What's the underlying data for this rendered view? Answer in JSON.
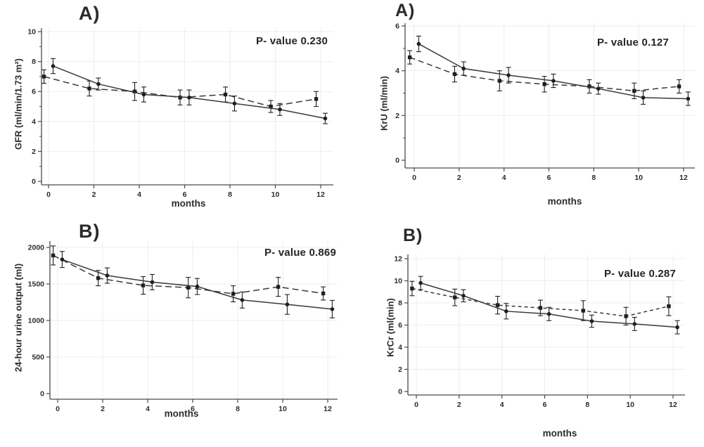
{
  "figure": {
    "background": "#ffffff",
    "text_color": "#2c2c2c",
    "axis_color": "#4a4a4a",
    "line_color": "#3a3a3a",
    "marker_color": "#1f1f1f",
    "grid_color": "#ededed",
    "xlabel": "months"
  },
  "chart_data": [
    {
      "type": "line",
      "name": "gfr",
      "panel_label": "A)",
      "p_value_label": "P- value 0.230",
      "p_value": 0.23,
      "ylabel": "GFR (ml/min/1.73 m²)",
      "xlabel": "months",
      "x": [
        0,
        2,
        4,
        6,
        8,
        10,
        12
      ],
      "xticks": [
        0,
        2,
        4,
        6,
        8,
        10,
        12
      ],
      "ylim": [
        0,
        10
      ],
      "yticks": [
        0,
        2,
        4,
        6,
        8,
        10
      ],
      "yticks_minor": [
        1,
        3,
        5,
        7,
        9
      ],
      "grid": true,
      "legend": "none",
      "series": [
        {
          "name": "group-solid",
          "line_style": "solid",
          "marker": "circle",
          "x_offset": 0.2,
          "values": [
            7.7,
            6.5,
            5.8,
            5.6,
            5.2,
            4.8,
            4.2
          ],
          "errors": [
            0.5,
            0.4,
            0.5,
            0.5,
            0.5,
            0.4,
            0.35
          ]
        },
        {
          "name": "group-dashed",
          "line_style": "dashed",
          "marker": "square",
          "x_offset": -0.2,
          "values": [
            7.0,
            6.2,
            6.0,
            5.6,
            5.8,
            5.0,
            5.5
          ],
          "errors": [
            0.45,
            0.5,
            0.6,
            0.5,
            0.5,
            0.4,
            0.5
          ]
        }
      ]
    },
    {
      "type": "line",
      "name": "kru",
      "panel_label": "A)",
      "p_value_label": "P- value 0.127",
      "p_value": 0.127,
      "ylabel": "KrU (ml/min)",
      "xlabel": "months",
      "x": [
        0,
        2,
        4,
        6,
        8,
        10,
        12
      ],
      "xticks": [
        0,
        2,
        4,
        6,
        8,
        10,
        12
      ],
      "ylim": [
        0,
        6
      ],
      "yticks": [
        0,
        2,
        4,
        6
      ],
      "yticks_minor": [
        1,
        3,
        5
      ],
      "grid": true,
      "legend": "none",
      "series": [
        {
          "name": "group-solid",
          "line_style": "solid",
          "marker": "circle",
          "x_offset": 0.2,
          "values": [
            5.2,
            4.1,
            3.8,
            3.55,
            3.2,
            2.8,
            2.75
          ],
          "errors": [
            0.35,
            0.3,
            0.35,
            0.3,
            0.25,
            0.3,
            0.3
          ]
        },
        {
          "name": "group-dashed",
          "line_style": "dashed",
          "marker": "square",
          "x_offset": -0.2,
          "values": [
            4.6,
            3.85,
            3.55,
            3.4,
            3.3,
            3.1,
            3.3
          ],
          "errors": [
            0.3,
            0.35,
            0.45,
            0.35,
            0.3,
            0.35,
            0.3
          ]
        }
      ]
    },
    {
      "type": "line",
      "name": "urine-output",
      "panel_label": "B)",
      "p_value_label": "P- value 0.869",
      "p_value": 0.869,
      "ylabel": "24-hour urine output (ml)",
      "xlabel": "months",
      "x": [
        0,
        2,
        4,
        6,
        8,
        10,
        12
      ],
      "xticks": [
        0,
        2,
        4,
        6,
        8,
        10,
        12
      ],
      "ylim": [
        0,
        2000
      ],
      "yticks": [
        0,
        500,
        1000,
        1500,
        2000
      ],
      "yticks_minor": [],
      "grid": true,
      "legend": "none",
      "series": [
        {
          "name": "group-solid",
          "line_style": "solid",
          "marker": "circle",
          "x_offset": 0.2,
          "values": [
            1835,
            1615,
            1525,
            1465,
            1280,
            1220,
            1155
          ],
          "errors": [
            110,
            105,
            105,
            110,
            110,
            135,
            120
          ]
        },
        {
          "name": "group-dashed",
          "line_style": "dashed",
          "marker": "square",
          "x_offset": -0.2,
          "values": [
            1890,
            1580,
            1480,
            1450,
            1365,
            1460,
            1370
          ],
          "errors": [
            130,
            105,
            120,
            140,
            110,
            130,
            90
          ]
        }
      ]
    },
    {
      "type": "line",
      "name": "krcr",
      "panel_label": "B)",
      "p_value_label": "P- value 0.287",
      "p_value": 0.287,
      "ylabel": "KrCr (ml(min)",
      "xlabel": "months",
      "x": [
        0,
        2,
        4,
        6,
        8,
        10,
        12
      ],
      "xticks": [
        0,
        2,
        4,
        6,
        8,
        10,
        12
      ],
      "ylim": [
        0,
        12
      ],
      "yticks": [
        0,
        2,
        4,
        6,
        8,
        10,
        12
      ],
      "yticks_minor": [],
      "grid": true,
      "legend": "none",
      "series": [
        {
          "name": "group-solid",
          "line_style": "solid",
          "marker": "circle",
          "x_offset": 0.2,
          "values": [
            9.8,
            8.65,
            7.25,
            7.0,
            6.35,
            6.1,
            5.8
          ],
          "errors": [
            0.6,
            0.55,
            0.7,
            0.6,
            0.55,
            0.6,
            0.6
          ]
        },
        {
          "name": "group-dashed",
          "line_style": "dashed",
          "marker": "square",
          "x_offset": -0.2,
          "values": [
            9.3,
            8.5,
            7.8,
            7.55,
            7.3,
            6.8,
            7.7
          ],
          "errors": [
            0.65,
            0.75,
            0.8,
            0.7,
            0.9,
            0.8,
            0.85
          ]
        }
      ]
    }
  ]
}
